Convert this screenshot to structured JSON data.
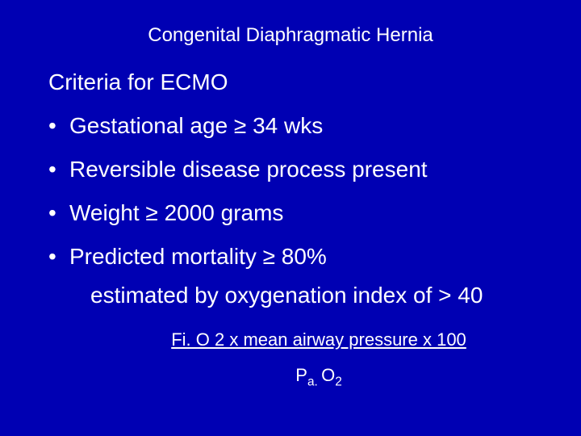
{
  "slide": {
    "background_color": "#0000b3",
    "text_color": "#ffffff",
    "title": "Congenital Diaphragmatic Hernia",
    "subtitle": "Criteria for ECMO",
    "bullets": [
      "Gestational age ≥ 34 wks",
      "Reversible disease process present",
      "Weight ≥ 2000 grams",
      "Predicted mortality ≥ 80%"
    ],
    "sub_line": "estimated by oxygenation index of > 40",
    "formula_numerator": "Fi. O 2 x mean airway pressure x 100",
    "formula_denom_prefix": "P",
    "formula_denom_sub1": "a. ",
    "formula_denom_mid": "O",
    "formula_denom_sub2": "2",
    "title_fontsize": 24,
    "body_fontsize": 28,
    "formula_fontsize": 22
  }
}
